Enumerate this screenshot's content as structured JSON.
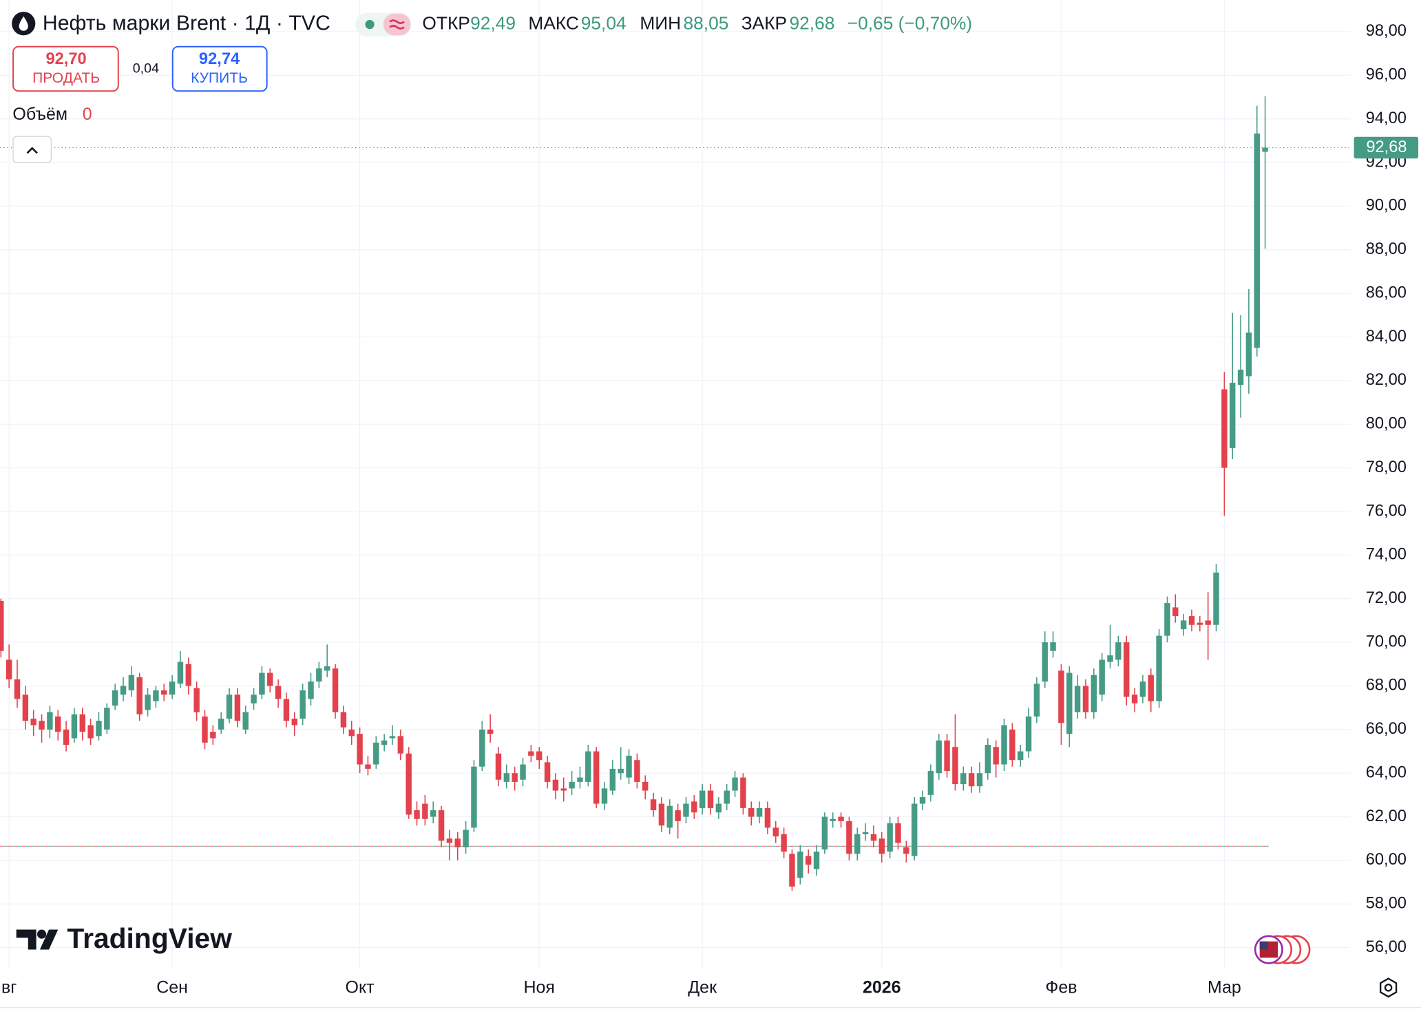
{
  "header": {
    "title": "Нефть марки Brent · 1Д · TVC",
    "ohlc": [
      {
        "label": "ОТКР",
        "value": "92,49"
      },
      {
        "label": "МАКС",
        "value": "95,04"
      },
      {
        "label": "МИН",
        "value": "88,05"
      },
      {
        "label": "ЗАКР",
        "value": "92,68"
      }
    ],
    "change": "−0,65 (−0,70%)"
  },
  "trade": {
    "sell_price": "92,70",
    "sell_label": "ПРОДАТЬ",
    "spread": "0,04",
    "buy_price": "92,74",
    "buy_label": "КУПИТЬ"
  },
  "volume": {
    "label": "Объём",
    "value": "0"
  },
  "logo": "TradingView",
  "chart_data": {
    "type": "candlestick",
    "up_color": "#469b84",
    "down_color": "#e3424d",
    "grid": true,
    "categories": [
      null,
      "вг",
      null,
      null,
      null,
      null,
      null,
      null,
      null,
      null,
      null,
      null,
      null,
      null,
      null,
      null,
      null,
      null,
      null,
      null,
      null,
      "Сен",
      null,
      null,
      null,
      null,
      null,
      null,
      null,
      null,
      null,
      null,
      null,
      null,
      null,
      null,
      null,
      null,
      null,
      null,
      null,
      null,
      null,
      null,
      "Окт",
      null,
      null,
      null,
      null,
      null,
      null,
      null,
      null,
      null,
      null,
      null,
      null,
      null,
      null,
      null,
      null,
      null,
      null,
      null,
      null,
      null,
      "Ноя",
      null,
      null,
      null,
      null,
      null,
      null,
      null,
      null,
      null,
      null,
      null,
      null,
      null,
      null,
      null,
      null,
      null,
      null,
      null,
      "Дек",
      null,
      null,
      null,
      null,
      null,
      null,
      null,
      null,
      null,
      null,
      null,
      null,
      null,
      null,
      null,
      null,
      null,
      null,
      null,
      null,
      null,
      "2026",
      null,
      null,
      null,
      null,
      null,
      null,
      null,
      null,
      null,
      null,
      null,
      null,
      null,
      null,
      null,
      null,
      null,
      null,
      null,
      null,
      null,
      "Фев",
      null,
      null,
      null,
      null,
      null,
      null,
      null,
      null,
      null,
      null,
      null,
      null,
      null,
      null,
      null,
      null,
      null,
      null,
      null,
      "Мар",
      null,
      null,
      null,
      null,
      null
    ],
    "open": [
      71.9,
      69.2,
      68.3,
      67.6,
      66.5,
      66.4,
      66.0,
      66.6,
      66.0,
      65.6,
      66.7,
      66.2,
      65.7,
      66.0,
      67.1,
      67.6,
      67.8,
      68.4,
      66.9,
      67.3,
      67.8,
      67.6,
      68.1,
      69.0,
      67.9,
      66.6,
      65.9,
      66.0,
      66.5,
      67.6,
      66.0,
      67.2,
      67.6,
      68.6,
      68.0,
      67.4,
      66.5,
      66.5,
      67.4,
      68.2,
      68.7,
      68.8,
      66.8,
      66.0,
      65.8,
      64.4,
      64.4,
      65.3,
      65.6,
      65.7,
      64.9,
      62.3,
      62.6,
      62.0,
      62.3,
      61.0,
      61.0,
      60.6,
      61.5,
      64.3,
      66.0,
      64.9,
      63.6,
      64.0,
      63.7,
      65.0,
      65.0,
      64.5,
      63.7,
      63.3,
      63.3,
      63.6,
      63.6,
      65.0,
      62.6,
      63.2,
      64.0,
      63.8,
      64.6,
      63.6,
      62.8,
      62.6,
      61.5,
      62.3,
      62.0,
      62.7,
      62.4,
      63.2,
      62.2,
      62.6,
      63.2,
      63.8,
      62.4,
      62.0,
      62.4,
      61.5,
      61.2,
      60.3,
      59.2,
      60.2,
      59.6,
      60.5,
      61.8,
      62.0,
      61.8,
      60.3,
      61.2,
      61.2,
      61.0,
      60.4,
      61.7,
      60.6,
      60.2,
      62.6,
      63.0,
      64.0,
      65.5,
      65.2,
      63.5,
      64.0,
      63.4,
      64.0,
      65.2,
      64.4,
      66.0,
      64.6,
      65.0,
      66.6,
      68.2,
      69.6,
      68.7,
      65.8,
      66.8,
      68.0,
      66.8,
      67.6,
      69.1,
      69.2,
      70.0,
      67.6,
      67.5,
      68.5,
      67.3,
      70.3,
      71.6,
      70.6,
      71.2,
      70.9,
      71.0,
      70.8,
      81.6,
      78.9,
      81.8,
      82.2,
      83.5,
      92.49
    ],
    "high": [
      72.0,
      69.9,
      69.2,
      68.0,
      66.9,
      66.7,
      67.1,
      66.9,
      66.4,
      67.0,
      67.0,
      66.5,
      66.8,
      67.2,
      68.1,
      68.4,
      68.9,
      68.6,
      67.9,
      68.0,
      68.1,
      68.5,
      69.6,
      69.3,
      68.2,
      66.9,
      66.2,
      66.8,
      67.9,
      67.9,
      67.1,
      67.9,
      68.9,
      68.8,
      68.3,
      67.7,
      66.8,
      68.1,
      68.6,
      69.1,
      69.9,
      69.0,
      67.1,
      66.4,
      66.1,
      64.8,
      65.7,
      65.8,
      66.2,
      66.0,
      65.2,
      62.7,
      63.0,
      62.7,
      62.5,
      61.4,
      61.3,
      61.8,
      64.6,
      66.4,
      66.7,
      65.2,
      64.4,
      64.3,
      64.7,
      65.3,
      65.2,
      64.8,
      64.0,
      63.8,
      64.1,
      64.3,
      65.3,
      65.2,
      63.6,
      64.6,
      65.2,
      65.1,
      64.9,
      63.9,
      63.1,
      62.9,
      62.8,
      62.6,
      62.9,
      63.0,
      63.5,
      63.5,
      62.9,
      63.5,
      64.1,
      64.0,
      62.7,
      62.7,
      62.7,
      61.8,
      61.5,
      60.5,
      60.7,
      60.5,
      60.7,
      62.2,
      62.2,
      62.2,
      62.0,
      61.5,
      61.7,
      61.6,
      61.3,
      62.0,
      62.0,
      60.9,
      62.9,
      63.2,
      64.4,
      65.8,
      65.8,
      66.7,
      64.3,
      64.3,
      64.5,
      65.6,
      65.5,
      66.5,
      66.3,
      65.3,
      67.0,
      68.4,
      70.5,
      70.5,
      69.0,
      68.9,
      68.5,
      68.3,
      68.8,
      69.5,
      70.8,
      70.3,
      70.3,
      67.9,
      68.5,
      68.8,
      70.6,
      72.1,
      72.2,
      71.3,
      71.5,
      71.2,
      72.3,
      73.6,
      82.4,
      85.1,
      85.0,
      86.2,
      94.6,
      95.04
    ],
    "low": [
      69.3,
      67.9,
      67.0,
      66.0,
      65.7,
      65.4,
      65.6,
      65.5,
      65.0,
      65.4,
      65.5,
      65.3,
      65.5,
      65.8,
      66.9,
      67.3,
      67.5,
      66.4,
      66.6,
      67.0,
      67.3,
      67.4,
      67.9,
      67.6,
      66.4,
      65.1,
      65.3,
      65.8,
      66.3,
      66.1,
      65.8,
      66.9,
      67.4,
      67.7,
      67.0,
      66.1,
      65.7,
      66.2,
      67.1,
      67.9,
      68.4,
      66.5,
      65.8,
      65.3,
      64.0,
      63.9,
      64.2,
      65.0,
      65.3,
      64.6,
      61.9,
      61.6,
      61.6,
      61.7,
      60.6,
      60.0,
      60.0,
      60.3,
      61.3,
      64.1,
      65.4,
      63.4,
      63.3,
      63.2,
      63.4,
      64.5,
      64.2,
      63.3,
      62.8,
      62.7,
      63.0,
      63.3,
      63.4,
      62.4,
      62.3,
      63.0,
      63.7,
      63.5,
      63.3,
      62.8,
      62.0,
      61.3,
      61.2,
      61.0,
      61.7,
      61.9,
      62.1,
      62.1,
      61.9,
      62.3,
      62.9,
      62.1,
      61.6,
      61.7,
      61.2,
      60.8,
      60.1,
      58.6,
      58.9,
      59.4,
      59.3,
      60.3,
      61.5,
      61.5,
      60.0,
      60.0,
      60.9,
      60.6,
      59.9,
      60.1,
      60.5,
      59.9,
      60.0,
      62.3,
      62.7,
      63.7,
      63.8,
      63.2,
      63.2,
      63.1,
      63.1,
      63.7,
      63.8,
      64.1,
      64.3,
      64.3,
      64.7,
      66.3,
      67.9,
      69.3,
      65.3,
      65.2,
      66.5,
      66.5,
      66.5,
      67.3,
      68.8,
      68.9,
      67.1,
      66.8,
      67.2,
      66.8,
      67.0,
      70.0,
      70.9,
      70.3,
      70.5,
      70.5,
      69.2,
      70.5,
      75.8,
      78.4,
      80.3,
      81.4,
      83.1,
      88.05
    ],
    "close": [
      69.6,
      68.3,
      67.4,
      66.4,
      66.2,
      66.0,
      66.8,
      65.9,
      65.3,
      66.7,
      65.9,
      65.6,
      66.4,
      67.0,
      67.8,
      68.0,
      68.5,
      66.7,
      67.6,
      67.8,
      67.6,
      68.2,
      69.1,
      68.0,
      66.8,
      65.4,
      65.6,
      66.5,
      67.6,
      66.4,
      66.8,
      67.6,
      68.6,
      68.0,
      67.4,
      66.4,
      66.2,
      67.8,
      68.2,
      68.8,
      68.9,
      66.8,
      66.1,
      65.7,
      64.4,
      64.2,
      65.4,
      65.5,
      65.7,
      64.9,
      62.1,
      61.9,
      61.9,
      62.3,
      60.9,
      60.8,
      60.6,
      61.4,
      64.3,
      66.0,
      65.8,
      63.7,
      64.0,
      63.6,
      64.4,
      64.8,
      64.6,
      63.6,
      63.2,
      63.2,
      63.6,
      63.8,
      65.0,
      62.6,
      63.3,
      64.2,
      64.2,
      64.8,
      63.6,
      63.2,
      62.3,
      61.6,
      62.5,
      61.8,
      62.6,
      62.2,
      63.2,
      62.4,
      62.6,
      63.2,
      63.8,
      62.4,
      62.0,
      62.4,
      61.5,
      61.1,
      60.4,
      58.8,
      60.4,
      59.8,
      60.4,
      62.0,
      61.9,
      61.8,
      60.3,
      61.2,
      61.3,
      60.9,
      60.3,
      61.7,
      60.8,
      60.3,
      62.6,
      62.9,
      64.1,
      65.5,
      64.1,
      63.5,
      64.0,
      63.4,
      64.0,
      65.3,
      64.4,
      66.2,
      64.6,
      65.0,
      66.6,
      68.1,
      70.0,
      70.0,
      66.3,
      68.6,
      68.0,
      66.8,
      68.5,
      69.2,
      69.4,
      70.0,
      67.5,
      67.2,
      68.2,
      67.3,
      70.3,
      71.8,
      71.2,
      71.0,
      70.8,
      70.8,
      70.8,
      73.2,
      78.0,
      81.9,
      82.5,
      84.2,
      93.33,
      92.68
    ],
    "ylim": [
      55.08,
      99.45
    ],
    "yticks": [
      {
        "value": 56,
        "label": "56,00"
      },
      {
        "value": 58,
        "label": "58,00"
      },
      {
        "value": 60,
        "label": "60,00"
      },
      {
        "value": 62,
        "label": "62,00"
      },
      {
        "value": 64,
        "label": "64,00"
      },
      {
        "value": 66,
        "label": "66,00"
      },
      {
        "value": 68,
        "label": "68,00"
      },
      {
        "value": 70,
        "label": "70,00"
      },
      {
        "value": 72,
        "label": "72,00"
      },
      {
        "value": 74,
        "label": "74,00"
      },
      {
        "value": 76,
        "label": "76,00"
      },
      {
        "value": 78,
        "label": "78,00"
      },
      {
        "value": 80,
        "label": "80,00"
      },
      {
        "value": 82,
        "label": "82,00"
      },
      {
        "value": 84,
        "label": "84,00"
      },
      {
        "value": 86,
        "label": "86,00"
      },
      {
        "value": 88,
        "label": "88,00"
      },
      {
        "value": 90,
        "label": "90,00"
      },
      {
        "value": 92,
        "label": "92,00"
      },
      {
        "value": 94,
        "label": "94,00"
      },
      {
        "value": 96,
        "label": "96,00"
      },
      {
        "value": 98,
        "label": "98,00"
      }
    ],
    "last_price": {
      "value": 92.68,
      "label": "92,68"
    },
    "reference_line": 60.65
  }
}
